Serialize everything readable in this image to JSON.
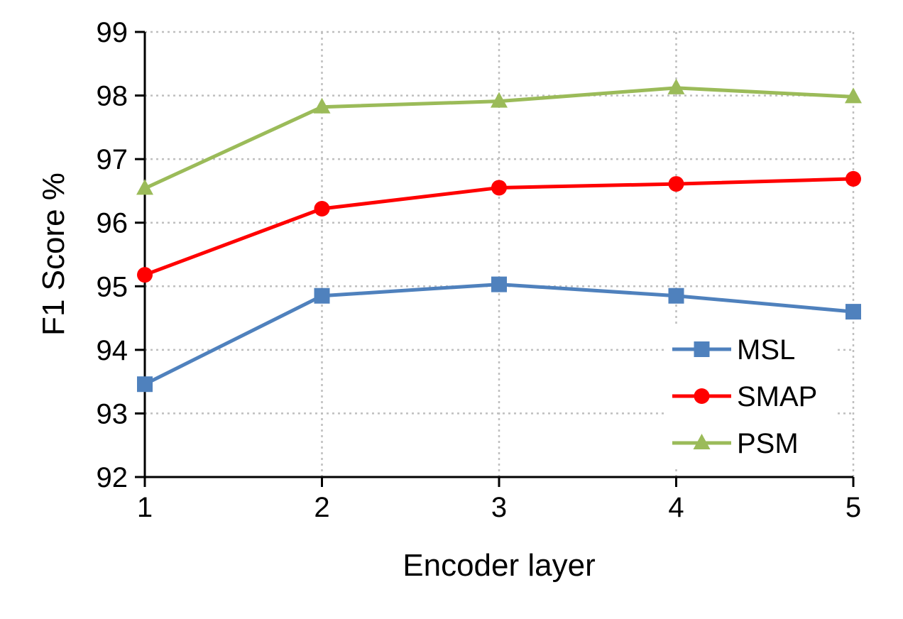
{
  "chart_data": {
    "type": "line",
    "title": "",
    "xlabel": "Encoder layer",
    "ylabel": "F1  Score %",
    "x": [
      1,
      2,
      3,
      4,
      5
    ],
    "x_tick_labels": [
      "1",
      "2",
      "3",
      "4",
      "5"
    ],
    "xlim": [
      1,
      5
    ],
    "ylim": [
      92,
      99
    ],
    "y_ticks": [
      92,
      93,
      94,
      95,
      96,
      97,
      98,
      99
    ],
    "y_tick_labels": [
      "92",
      "93",
      "94",
      "95",
      "96",
      "97",
      "98",
      "99"
    ],
    "grid": true,
    "legend_position": "bottom-right",
    "series": [
      {
        "name": "MSL",
        "values": [
          93.46,
          94.85,
          95.03,
          94.85,
          94.6
        ],
        "color": "#4F81BD",
        "marker": "square"
      },
      {
        "name": "SMAP",
        "values": [
          95.18,
          96.22,
          96.55,
          96.61,
          96.69
        ],
        "color": "#FF0000",
        "marker": "circle"
      },
      {
        "name": "PSM",
        "values": [
          96.54,
          97.82,
          97.91,
          98.12,
          97.98
        ],
        "color": "#9BBB59",
        "marker": "triangle"
      }
    ]
  }
}
